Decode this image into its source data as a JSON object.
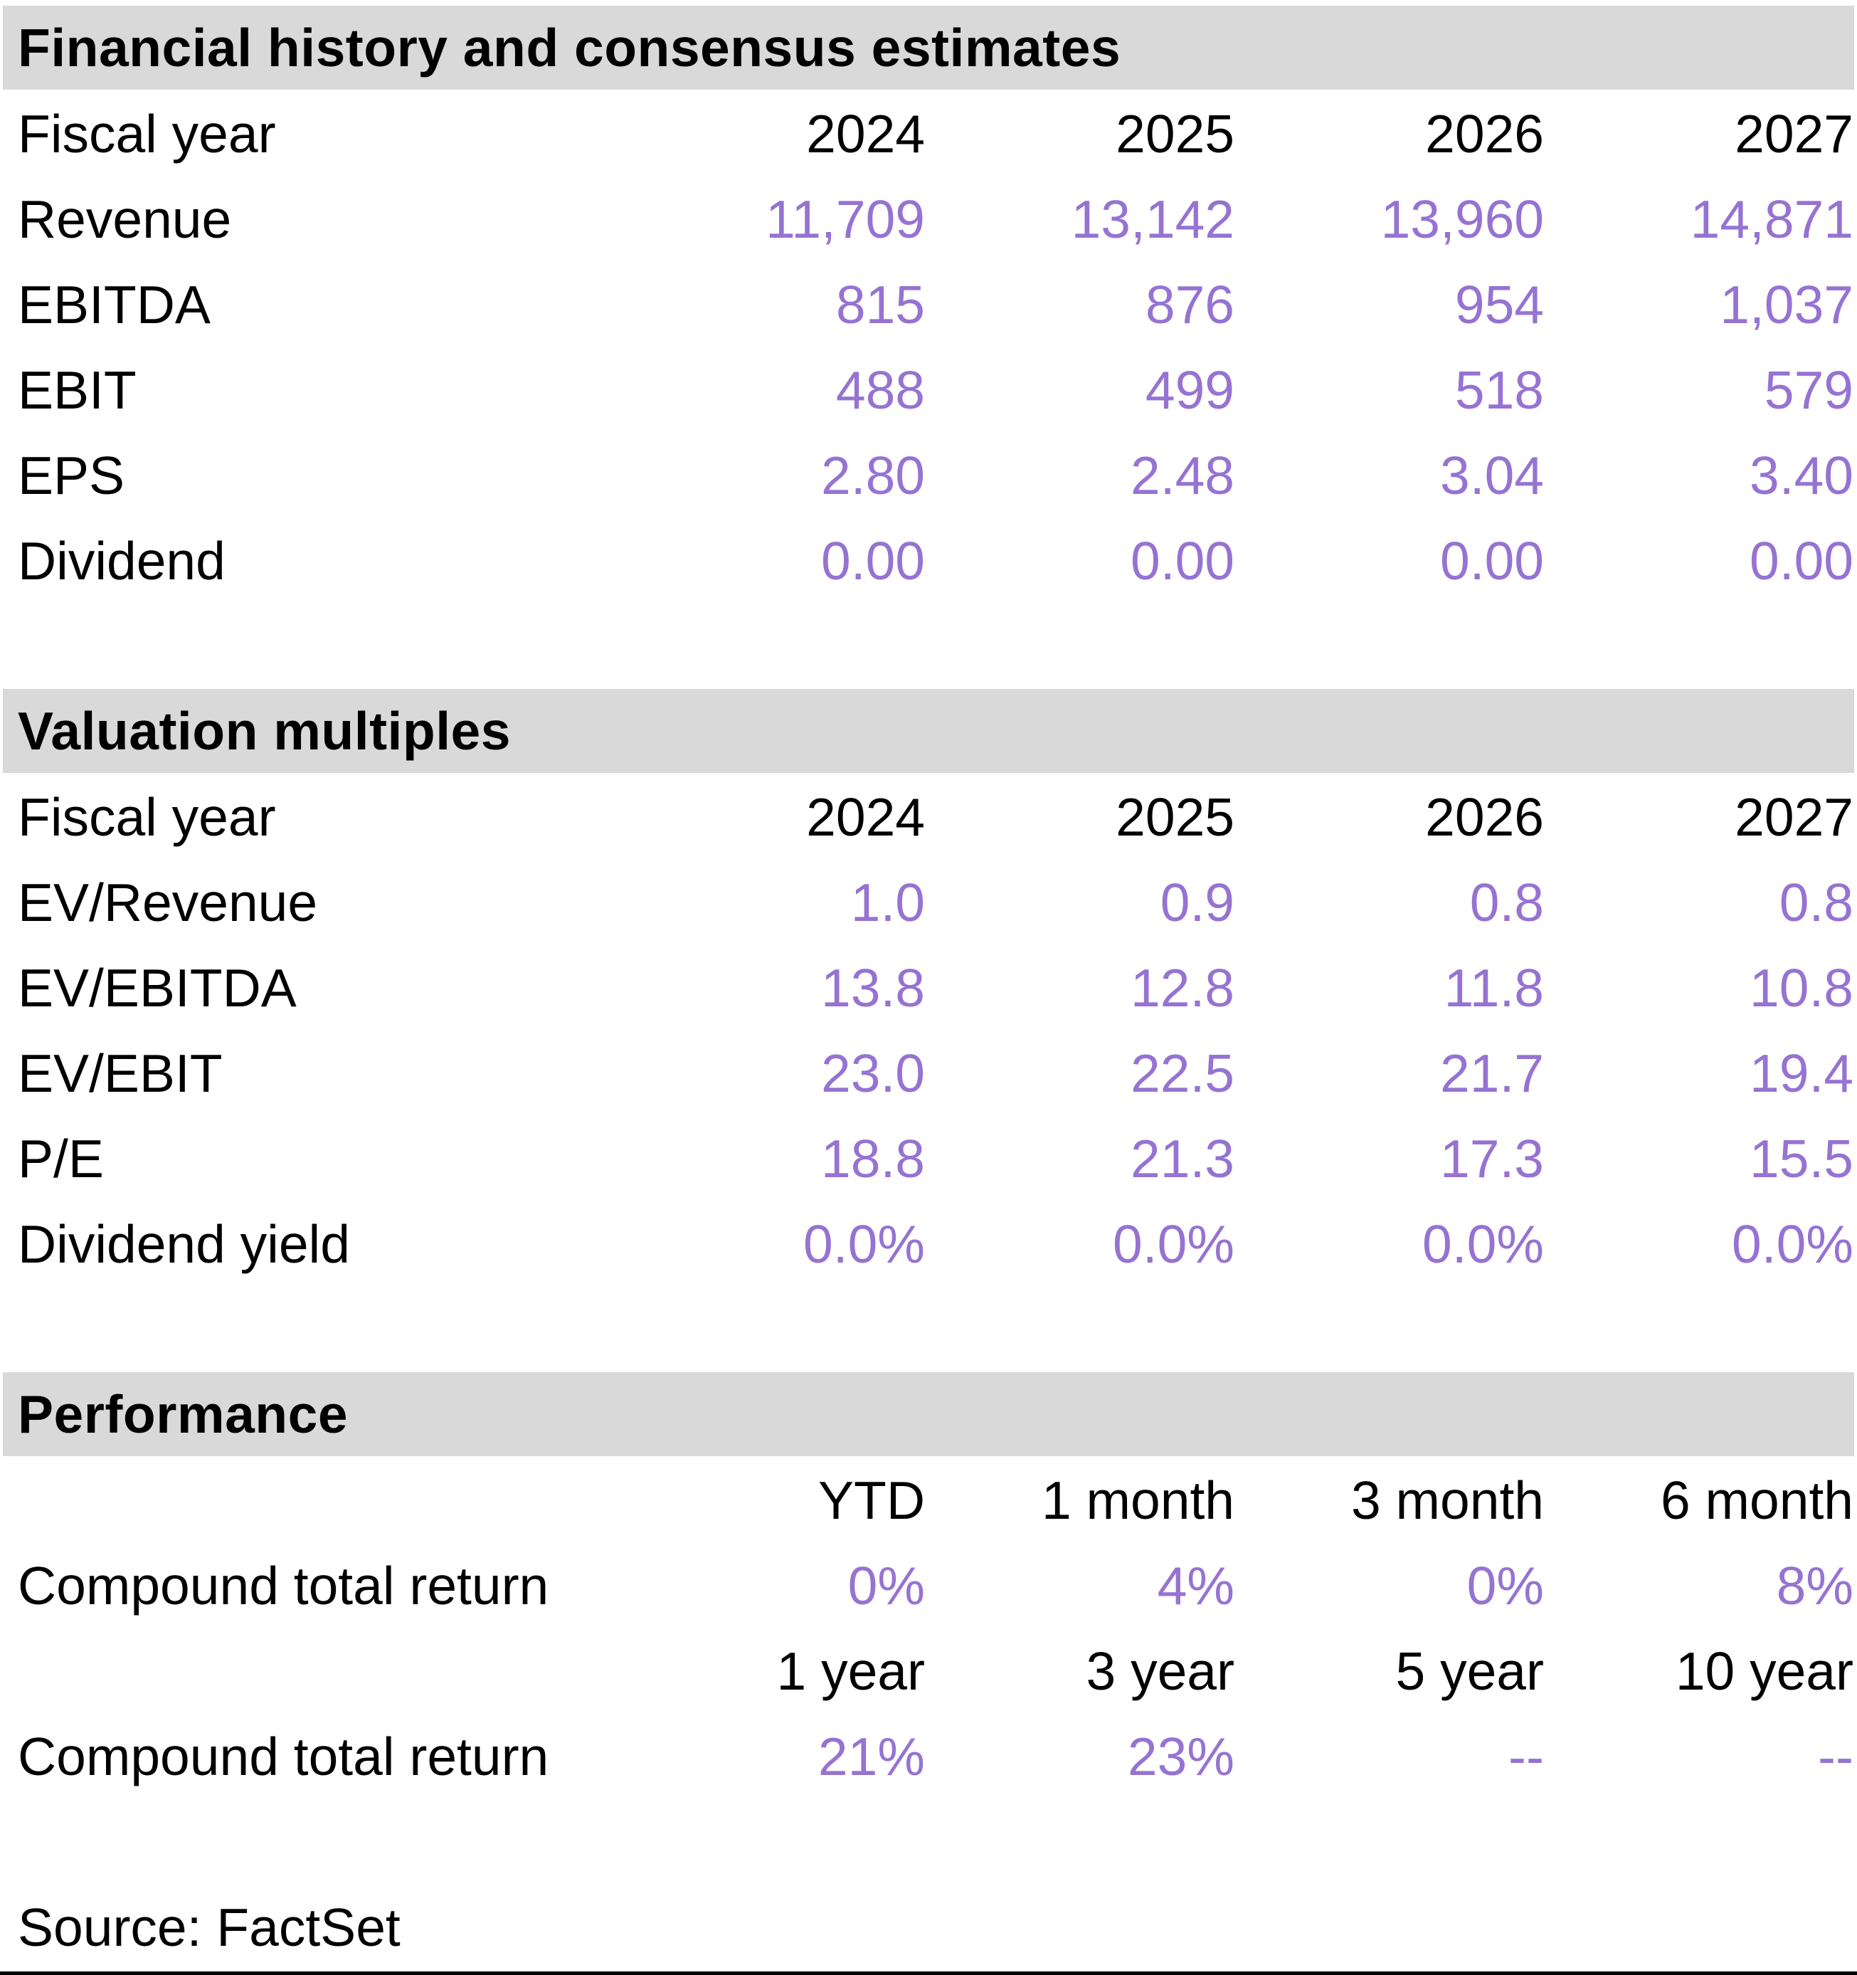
{
  "colors": {
    "accent_purple": "#9673D2",
    "section_header_bg": "#D9D9D9",
    "text": "#000000"
  },
  "sections": {
    "financial": {
      "title": "Financial history and consensus estimates",
      "row_header_label": "Fiscal year",
      "columns": [
        "2024",
        "2025",
        "2026",
        "2027"
      ],
      "rows": [
        {
          "label": "Revenue",
          "values": [
            "11,709",
            "13,142",
            "13,960",
            "14,871"
          ]
        },
        {
          "label": "EBITDA",
          "values": [
            "815",
            "876",
            "954",
            "1,037"
          ]
        },
        {
          "label": "EBIT",
          "values": [
            "488",
            "499",
            "518",
            "579"
          ]
        },
        {
          "label": "EPS",
          "values": [
            "2.80",
            "2.48",
            "3.04",
            "3.40"
          ]
        },
        {
          "label": "Dividend",
          "values": [
            "0.00",
            "0.00",
            "0.00",
            "0.00"
          ]
        }
      ]
    },
    "valuation": {
      "title": "Valuation multiples",
      "row_header_label": "Fiscal year",
      "columns": [
        "2024",
        "2025",
        "2026",
        "2027"
      ],
      "rows": [
        {
          "label": "EV/Revenue",
          "values": [
            "1.0",
            "0.9",
            "0.8",
            "0.8"
          ]
        },
        {
          "label": "EV/EBITDA",
          "values": [
            "13.8",
            "12.8",
            "11.8",
            "10.8"
          ]
        },
        {
          "label": "EV/EBIT",
          "values": [
            "23.0",
            "22.5",
            "21.7",
            "19.4"
          ]
        },
        {
          "label": "P/E",
          "values": [
            "18.8",
            "21.3",
            "17.3",
            "15.5"
          ]
        },
        {
          "label": "Dividend yield",
          "values": [
            "0.0%",
            "0.0%",
            "0.0%",
            "0.0%"
          ]
        }
      ]
    },
    "performance": {
      "title": "Performance",
      "blocks": [
        {
          "columns": [
            "YTD",
            "1 month",
            "3 month",
            "6 month"
          ],
          "row_label": "Compound total return",
          "values": [
            "0%",
            "4%",
            "0%",
            "8%"
          ]
        },
        {
          "columns": [
            "1 year",
            "3 year",
            "5 year",
            "10 year"
          ],
          "row_label": "Compound total return",
          "values": [
            "21%",
            "23%",
            "--",
            "--"
          ]
        }
      ]
    }
  },
  "source": {
    "text": "Source: FactSet"
  }
}
